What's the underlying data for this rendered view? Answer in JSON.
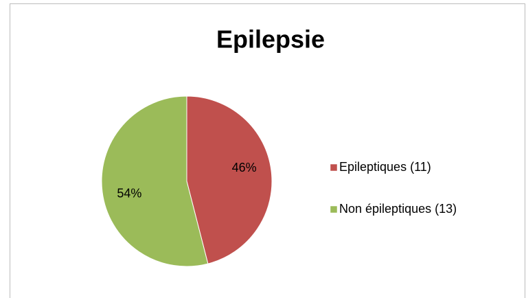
{
  "chart_data": {
    "type": "pie",
    "title": "Epilepsie",
    "categories": [
      "Epileptiques (11)",
      "Non épileptiques (13)"
    ],
    "values": [
      46,
      54
    ],
    "value_labels": [
      "46%",
      "54%"
    ],
    "colors": [
      "#c0504d",
      "#9bbb59"
    ],
    "legend": "right"
  }
}
